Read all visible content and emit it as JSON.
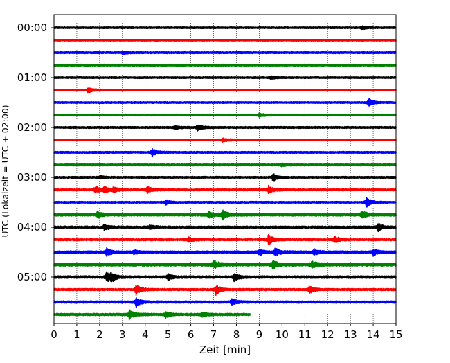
{
  "chart_data": {
    "type": "line",
    "title": "",
    "xlabel": "Zeit  [min]",
    "ylabel": "UTC (Lokalzeit = UTC + 02:00)",
    "xlim": [
      0,
      15
    ],
    "x_ticks": [
      0,
      1,
      2,
      3,
      4,
      5,
      6,
      7,
      8,
      9,
      10,
      11,
      12,
      13,
      14,
      15
    ],
    "y_tick_labels": [
      "00:00",
      "01:00",
      "02:00",
      "03:00",
      "04:00",
      "05:00"
    ],
    "y_tick_rows": [
      0,
      4,
      8,
      12,
      16,
      20
    ],
    "grid": "vertical dotted at each minute",
    "row_interval_min": 15,
    "row_colors": [
      "#000000",
      "#ff0000",
      "#0000ff",
      "#008000"
    ],
    "rows": [
      {
        "label_time": "00:00",
        "end_min": 15,
        "noise": 0.9,
        "events": [
          [
            13.5,
            1.5
          ]
        ]
      },
      {
        "label_time": "00:15",
        "end_min": 15,
        "noise": 0.9,
        "events": []
      },
      {
        "label_time": "00:30",
        "end_min": 15,
        "noise": 1.0,
        "events": [
          [
            3.0,
            1.3
          ]
        ]
      },
      {
        "label_time": "00:45",
        "end_min": 15,
        "noise": 1.0,
        "events": []
      },
      {
        "label_time": "01:00",
        "end_min": 15,
        "noise": 0.9,
        "events": [
          [
            9.5,
            1.6
          ]
        ]
      },
      {
        "label_time": "01:15",
        "end_min": 15,
        "noise": 0.9,
        "events": [
          [
            1.5,
            2.5
          ]
        ]
      },
      {
        "label_time": "01:30",
        "end_min": 15,
        "noise": 0.9,
        "events": [
          [
            13.8,
            4.0
          ]
        ]
      },
      {
        "label_time": "01:45",
        "end_min": 15,
        "noise": 1.0,
        "events": [
          [
            9.0,
            1.5
          ]
        ]
      },
      {
        "label_time": "02:00",
        "end_min": 15,
        "noise": 1.0,
        "events": [
          [
            6.3,
            2.8
          ],
          [
            5.3,
            1.5
          ]
        ]
      },
      {
        "label_time": "02:15",
        "end_min": 15,
        "noise": 0.9,
        "events": [
          [
            7.4,
            1.8
          ]
        ]
      },
      {
        "label_time": "02:30",
        "end_min": 15,
        "noise": 1.0,
        "events": [
          [
            4.3,
            4.5
          ]
        ]
      },
      {
        "label_time": "02:45",
        "end_min": 15,
        "noise": 1.1,
        "events": [
          [
            10.0,
            1.4
          ]
        ]
      },
      {
        "label_time": "03:00",
        "end_min": 15,
        "noise": 1.0,
        "events": [
          [
            9.6,
            3.5
          ],
          [
            2.0,
            1.5
          ]
        ]
      },
      {
        "label_time": "03:15",
        "end_min": 15,
        "noise": 1.1,
        "events": [
          [
            1.8,
            3.5
          ],
          [
            2.2,
            3.0
          ],
          [
            2.6,
            2.5
          ],
          [
            4.1,
            3.5
          ],
          [
            9.4,
            4.0
          ]
        ]
      },
      {
        "label_time": "03:30",
        "end_min": 15,
        "noise": 1.0,
        "events": [
          [
            4.9,
            2.0
          ],
          [
            13.7,
            4.5
          ]
        ]
      },
      {
        "label_time": "03:45",
        "end_min": 15,
        "noise": 1.4,
        "events": [
          [
            1.9,
            3.0
          ],
          [
            6.8,
            3.0
          ],
          [
            7.4,
            4.5
          ],
          [
            13.5,
            3.5
          ]
        ]
      },
      {
        "label_time": "04:00",
        "end_min": 15,
        "noise": 1.2,
        "events": [
          [
            2.2,
            3.0
          ],
          [
            4.2,
            2.0
          ],
          [
            14.2,
            4.0
          ]
        ]
      },
      {
        "label_time": "04:15",
        "end_min": 15,
        "noise": 1.1,
        "events": [
          [
            5.9,
            2.5
          ],
          [
            9.4,
            5.0
          ],
          [
            12.3,
            3.5
          ]
        ]
      },
      {
        "label_time": "04:30",
        "end_min": 15,
        "noise": 1.3,
        "events": [
          [
            2.3,
            4.0
          ],
          [
            3.5,
            2.0
          ],
          [
            9.0,
            3.0
          ],
          [
            9.7,
            4.0
          ],
          [
            11.4,
            3.0
          ],
          [
            14.0,
            3.0
          ]
        ]
      },
      {
        "label_time": "04:45",
        "end_min": 15,
        "noise": 1.6,
        "events": [
          [
            7.0,
            4.0
          ],
          [
            9.6,
            4.5
          ],
          [
            11.3,
            3.0
          ]
        ]
      },
      {
        "label_time": "05:00",
        "end_min": 15,
        "noise": 1.3,
        "events": [
          [
            2.3,
            4.5
          ],
          [
            2.5,
            4.0
          ],
          [
            5.0,
            3.0
          ],
          [
            7.9,
            3.5
          ]
        ]
      },
      {
        "label_time": "05:15",
        "end_min": 15,
        "noise": 1.1,
        "events": [
          [
            3.6,
            5.0
          ],
          [
            7.1,
            5.0
          ],
          [
            11.2,
            3.5
          ]
        ]
      },
      {
        "label_time": "05:30",
        "end_min": 15,
        "noise": 1.2,
        "events": [
          [
            3.6,
            4.5
          ],
          [
            7.8,
            3.0
          ]
        ]
      },
      {
        "label_time": "05:45",
        "end_min": 8.6,
        "noise": 1.2,
        "events": [
          [
            3.3,
            4.5
          ],
          [
            4.9,
            3.0
          ],
          [
            6.5,
            2.5
          ]
        ]
      }
    ]
  }
}
